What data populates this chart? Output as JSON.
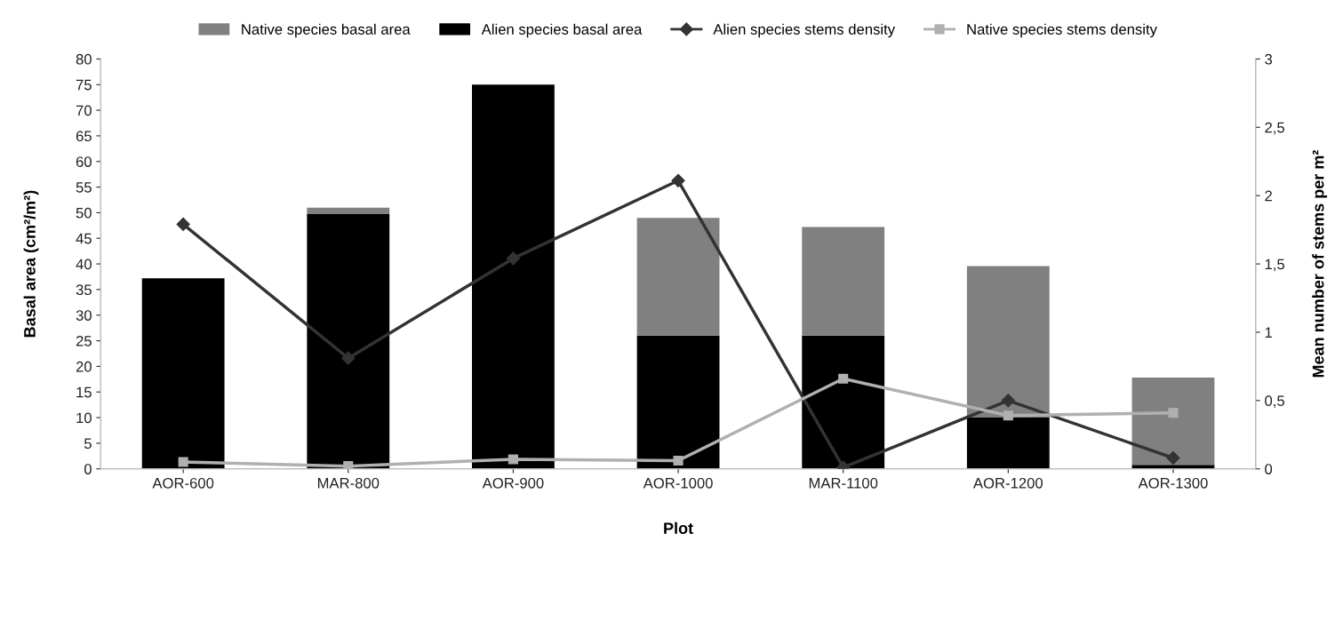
{
  "chart_data": {
    "type": "bar",
    "stacked": true,
    "xlabel": "Plot",
    "ylabel": "Basal area (cm²/m²)",
    "y2label": "Mean number of stems per m²",
    "categories": [
      "AOR-600",
      "MAR-800",
      "AOR-900",
      "AOR-1000",
      "MAR-1100",
      "AOR-1200",
      "AOR-1300"
    ],
    "series": [
      {
        "name": "Alien species basal area",
        "color": "#000000",
        "values": [
          37.2,
          49.8,
          75,
          26,
          26,
          10,
          0.8
        ]
      },
      {
        "name": "Native species basal area",
        "color": "#808080",
        "values": [
          0,
          1.2,
          0,
          23,
          21.2,
          29.6,
          17
        ]
      },
      {
        "name": "Alien species stems density",
        "type": "line",
        "axis": "y2",
        "marker": "diamond",
        "color": "#333333",
        "values": [
          1.79,
          0.81,
          1.54,
          2.11,
          0.01,
          0.5,
          0.08
        ]
      },
      {
        "name": "Native species stems density",
        "type": "line",
        "axis": "y2",
        "marker": "square",
        "color": "#b0b0b0",
        "values": [
          0.05,
          0.02,
          0.07,
          0.06,
          0.66,
          0.39,
          0.41
        ]
      }
    ],
    "ylim": [
      0,
      80
    ],
    "yticks": [
      0,
      5,
      10,
      15,
      20,
      25,
      30,
      35,
      40,
      45,
      50,
      55,
      60,
      65,
      70,
      75,
      80
    ],
    "y2lim": [
      0,
      3
    ],
    "y2ticks": [
      0,
      {
        "value": 0.5,
        "label": "0,5"
      },
      1,
      {
        "value": 1.5,
        "label": "1,5"
      },
      2,
      {
        "value": 2.5,
        "label": "2,5"
      },
      3
    ],
    "grid": false,
    "legend": "top"
  }
}
